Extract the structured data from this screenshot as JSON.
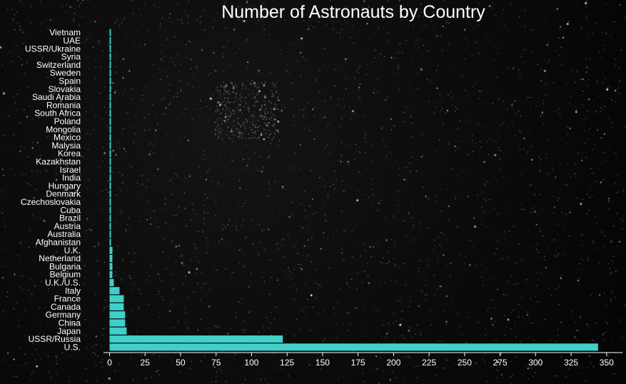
{
  "chart_data": {
    "type": "bar",
    "orientation": "horizontal",
    "title": "Number of Astronauts by Country",
    "xlabel": "",
    "ylabel": "",
    "xlim": [
      0,
      360
    ],
    "xticks": [
      0,
      25,
      50,
      75,
      100,
      125,
      150,
      175,
      200,
      225,
      250,
      275,
      300,
      325,
      350
    ],
    "grid": false,
    "bar_color": "#3fd0c9",
    "background": "starfield",
    "categories": [
      "U.S.",
      "USSR/Russia",
      "Japan",
      "China",
      "Germany",
      "Canada",
      "France",
      "Italy",
      "U.K./U.S.",
      "Belgium",
      "Bulgaria",
      "Netherland",
      "U.K.",
      "Afghanistan",
      "Australia",
      "Austria",
      "Brazil",
      "Cuba",
      "Czechoslovakia",
      "Denmark",
      "Hungary",
      "India",
      "Israel",
      "Kazakhstan",
      "Korea",
      "Malysia",
      "Mexico",
      "Mongolia",
      "Poland",
      "South Africa",
      "Romania",
      "Saudi Arabia",
      "Slovakia",
      "Spain",
      "Sweden",
      "Switzerland",
      "Syria",
      "USSR/Ukraine",
      "UAE",
      "Vietnam"
    ],
    "values": [
      344,
      122,
      12,
      11,
      11,
      10,
      10,
      7,
      3,
      2,
      2,
      2,
      2,
      1,
      1,
      1,
      1,
      1,
      1,
      1,
      1,
      1,
      1,
      1,
      1,
      1,
      1,
      1,
      1,
      1,
      1,
      1,
      1,
      1,
      1,
      1,
      1,
      1,
      1,
      1
    ]
  }
}
